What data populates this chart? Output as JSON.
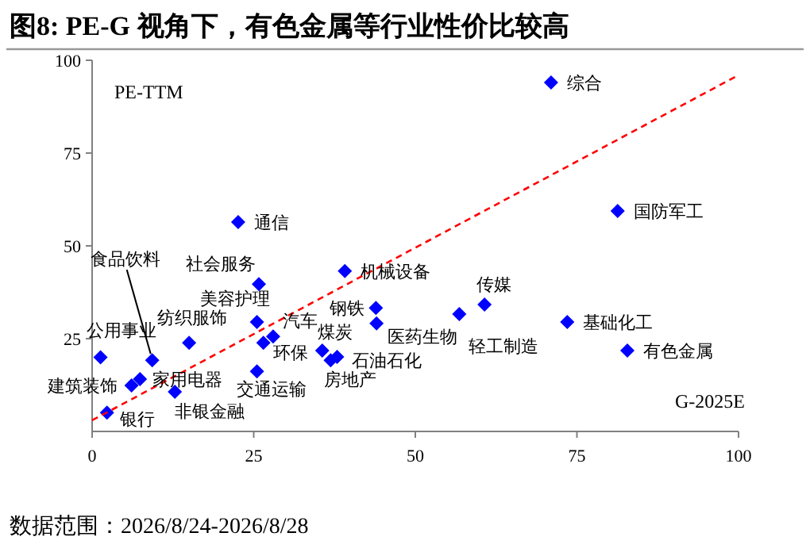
{
  "chart_data": {
    "type": "scatter",
    "title": "图8: PE-G 视角下，有色金属等行业性价比较高",
    "xlabel": "G-2025E",
    "ylabel": "PE-TTM",
    "xlim": [
      0,
      100
    ],
    "ylim": [
      0,
      100
    ],
    "xticks": [
      0,
      25,
      50,
      75,
      100
    ],
    "yticks": [
      25,
      50,
      75,
      100
    ],
    "series": [
      {
        "color": "#0000ff",
        "marker": "diamond",
        "x": [
          22.6,
          25.8,
          39.1,
          25.5,
          28.0,
          26.5,
          15.0,
          1.3,
          9.3,
          6.1,
          7.4,
          12.8,
          2.3,
          25.5,
          35.6,
          37.9,
          36.9,
          43.9,
          44.0,
          56.8,
          60.7,
          71.0,
          81.3,
          73.5,
          82.8
        ],
        "values": [
          56.4,
          39.7,
          43.2,
          29.5,
          25.6,
          23.9,
          23.9,
          20.0,
          19.2,
          12.4,
          14.1,
          10.7,
          5.1,
          16.2,
          21.8,
          20.1,
          19.2,
          33.3,
          29.1,
          31.6,
          34.2,
          94.0,
          59.4,
          29.5,
          21.8
        ]
      },
      {
        "type": "line",
        "color": "#ff0000",
        "line_style": "dashed",
        "x": [
          0,
          100
        ],
        "values": [
          3,
          96
        ]
      }
    ],
    "annotations": [
      {
        "text": "通信",
        "x": 22.6,
        "y": 56.4
      },
      {
        "text": "社会服务",
        "x": 25.8,
        "y": 39.7
      },
      {
        "text": "机械设备",
        "x": 39.1,
        "y": 43.2
      },
      {
        "text": "美容护理",
        "x": 25.5,
        "y": 29.5
      },
      {
        "text": "汽车",
        "x": 28.0,
        "y": 25.6
      },
      {
        "text": "环保",
        "x": 26.5,
        "y": 23.9
      },
      {
        "text": "纺织服饰",
        "x": 15.0,
        "y": 23.9
      },
      {
        "text": "公用事业",
        "x": 1.3,
        "y": 20.0
      },
      {
        "text": "食品饮料",
        "x": 9.3,
        "y": 19.2
      },
      {
        "text": "建筑装饰",
        "x": 6.1,
        "y": 12.4
      },
      {
        "text": "家用电器",
        "x": 7.4,
        "y": 14.1
      },
      {
        "text": "非银金融",
        "x": 12.8,
        "y": 10.7
      },
      {
        "text": "银行",
        "x": 2.3,
        "y": 5.1
      },
      {
        "text": "交通运输",
        "x": 25.5,
        "y": 16.2
      },
      {
        "text": "煤炭",
        "x": 35.6,
        "y": 21.8
      },
      {
        "text": "石油石化",
        "x": 37.9,
        "y": 20.1
      },
      {
        "text": "房地产",
        "x": 36.9,
        "y": 19.2
      },
      {
        "text": "钢铁",
        "x": 43.9,
        "y": 33.3
      },
      {
        "text": "医药生物",
        "x": 44.0,
        "y": 29.1
      },
      {
        "text": "轻工制造",
        "x": 56.8,
        "y": 31.6
      },
      {
        "text": "传媒",
        "x": 60.7,
        "y": 34.2
      },
      {
        "text": "综合",
        "x": 71.0,
        "y": 94.0
      },
      {
        "text": "国防军工",
        "x": 81.3,
        "y": 59.4
      },
      {
        "text": "基础化工",
        "x": 73.5,
        "y": 29.5
      },
      {
        "text": "有色金属",
        "x": 82.8,
        "y": 21.8
      },
      "数据范围：2026/8/24-2026/8/28"
    ]
  }
}
